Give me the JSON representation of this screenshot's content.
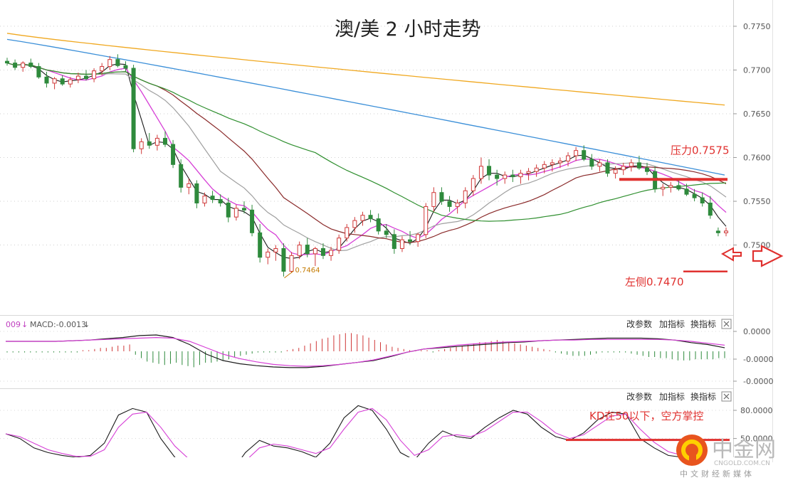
{
  "chart_data": [
    {
      "type": "candlestick",
      "title": "澳/美 2 小时走势",
      "y_ticks": [
        "0.7750",
        "0.7700",
        "0.7650",
        "0.7600",
        "0.7550",
        "0.7500"
      ],
      "ylim": [
        0.742,
        0.778
      ],
      "grid": true,
      "low_label": "0.7464",
      "low_value": 0.7464,
      "candles": [
        [
          0.771,
          0.7714,
          0.7705,
          0.7708
        ],
        [
          0.7708,
          0.7712,
          0.77,
          0.7703
        ],
        [
          0.7703,
          0.771,
          0.7698,
          0.7708
        ],
        [
          0.7708,
          0.7713,
          0.7702,
          0.7704
        ],
        [
          0.7704,
          0.7708,
          0.769,
          0.7692
        ],
        [
          0.7692,
          0.7698,
          0.768,
          0.7685
        ],
        [
          0.7685,
          0.7692,
          0.7678,
          0.769
        ],
        [
          0.769,
          0.7694,
          0.7682,
          0.7684
        ],
        [
          0.7684,
          0.7692,
          0.768,
          0.7689
        ],
        [
          0.7689,
          0.7697,
          0.7685,
          0.7693
        ],
        [
          0.7693,
          0.77,
          0.7688,
          0.769
        ],
        [
          0.769,
          0.7702,
          0.7686,
          0.7699
        ],
        [
          0.7699,
          0.7708,
          0.7694,
          0.7704
        ],
        [
          0.7704,
          0.7716,
          0.77,
          0.7712
        ],
        [
          0.7712,
          0.7718,
          0.7703,
          0.7705
        ],
        [
          0.7705,
          0.771,
          0.7698,
          0.7702
        ],
        [
          0.7702,
          0.7706,
          0.7606,
          0.761
        ],
        [
          0.761,
          0.7622,
          0.7604,
          0.7618
        ],
        [
          0.7618,
          0.7628,
          0.761,
          0.7614
        ],
        [
          0.7614,
          0.7626,
          0.7608,
          0.7622
        ],
        [
          0.7622,
          0.763,
          0.7612,
          0.7615
        ],
        [
          0.7615,
          0.762,
          0.7588,
          0.7592
        ],
        [
          0.7592,
          0.7598,
          0.756,
          0.7566
        ],
        [
          0.7566,
          0.7576,
          0.7558,
          0.757
        ],
        [
          0.757,
          0.7574,
          0.7542,
          0.7548
        ],
        [
          0.7548,
          0.756,
          0.7544,
          0.7556
        ],
        [
          0.7556,
          0.7562,
          0.7548,
          0.7552
        ],
        [
          0.7552,
          0.7558,
          0.7544,
          0.7548
        ],
        [
          0.7548,
          0.7554,
          0.7526,
          0.7532
        ],
        [
          0.7532,
          0.7546,
          0.7528,
          0.7542
        ],
        [
          0.7542,
          0.755,
          0.7536,
          0.754
        ],
        [
          0.754,
          0.7546,
          0.751,
          0.7514
        ],
        [
          0.7514,
          0.7524,
          0.748,
          0.7486
        ],
        [
          0.7486,
          0.7496,
          0.7478,
          0.7492
        ],
        [
          0.7492,
          0.75,
          0.7482,
          0.7496
        ],
        [
          0.7496,
          0.7502,
          0.7464,
          0.747
        ],
        [
          0.747,
          0.7492,
          0.7468,
          0.7488
        ],
        [
          0.7488,
          0.7504,
          0.7484,
          0.75
        ],
        [
          0.75,
          0.7508,
          0.7486,
          0.749
        ],
        [
          0.749,
          0.7498,
          0.7476,
          0.7496
        ],
        [
          0.7496,
          0.7502,
          0.7484,
          0.7488
        ],
        [
          0.7488,
          0.7498,
          0.7482,
          0.7494
        ],
        [
          0.7494,
          0.7512,
          0.749,
          0.7508
        ],
        [
          0.7508,
          0.7524,
          0.7504,
          0.752
        ],
        [
          0.752,
          0.7532,
          0.7514,
          0.7528
        ],
        [
          0.7528,
          0.7538,
          0.7522,
          0.7534
        ],
        [
          0.7534,
          0.754,
          0.7526,
          0.753
        ],
        [
          0.753,
          0.7536,
          0.7512,
          0.7516
        ],
        [
          0.7516,
          0.7524,
          0.7508,
          0.7512
        ],
        [
          0.7512,
          0.7518,
          0.749,
          0.7496
        ],
        [
          0.7496,
          0.751,
          0.7492,
          0.7506
        ],
        [
          0.7506,
          0.7516,
          0.75,
          0.7504
        ],
        [
          0.7504,
          0.7514,
          0.7498,
          0.7512
        ],
        [
          0.7512,
          0.7548,
          0.7508,
          0.7544
        ],
        [
          0.7544,
          0.7566,
          0.7538,
          0.756
        ],
        [
          0.756,
          0.7566,
          0.7546,
          0.755
        ],
        [
          0.755,
          0.7556,
          0.7538,
          0.7544
        ],
        [
          0.7544,
          0.7552,
          0.7536,
          0.7548
        ],
        [
          0.7548,
          0.7566,
          0.7542,
          0.7562
        ],
        [
          0.7562,
          0.758,
          0.7556,
          0.7576
        ],
        [
          0.7576,
          0.76,
          0.757,
          0.759
        ],
        [
          0.759,
          0.7598,
          0.7574,
          0.758
        ],
        [
          0.758,
          0.7586,
          0.7568,
          0.7576
        ],
        [
          0.7576,
          0.7584,
          0.757,
          0.758
        ],
        [
          0.758,
          0.7586,
          0.7572,
          0.7578
        ],
        [
          0.7578,
          0.7586,
          0.757,
          0.7582
        ],
        [
          0.7582,
          0.7588,
          0.7574,
          0.7584
        ],
        [
          0.7584,
          0.7592,
          0.7578,
          0.7588
        ],
        [
          0.7588,
          0.7596,
          0.7582,
          0.7592
        ],
        [
          0.7592,
          0.7598,
          0.7584,
          0.7594
        ],
        [
          0.7594,
          0.76,
          0.7588,
          0.7596
        ],
        [
          0.7596,
          0.7606,
          0.759,
          0.7602
        ],
        [
          0.7602,
          0.7612,
          0.7596,
          0.7608
        ],
        [
          0.7608,
          0.7614,
          0.7596,
          0.7598
        ],
        [
          0.7598,
          0.7604,
          0.7586,
          0.759
        ],
        [
          0.759,
          0.7598,
          0.7584,
          0.7594
        ],
        [
          0.7594,
          0.7598,
          0.7578,
          0.7582
        ],
        [
          0.7582,
          0.759,
          0.7576,
          0.7586
        ],
        [
          0.7586,
          0.7594,
          0.758,
          0.759
        ],
        [
          0.759,
          0.7598,
          0.7584,
          0.7594
        ],
        [
          0.7594,
          0.7602,
          0.7586,
          0.7588
        ],
        [
          0.7588,
          0.7594,
          0.758,
          0.7584
        ],
        [
          0.7584,
          0.759,
          0.756,
          0.7564
        ],
        [
          0.7564,
          0.757,
          0.7556,
          0.7566
        ],
        [
          0.7566,
          0.7572,
          0.756,
          0.7568
        ],
        [
          0.7568,
          0.7574,
          0.7562,
          0.7564
        ],
        [
          0.7564,
          0.757,
          0.7556,
          0.7558
        ],
        [
          0.7558,
          0.7564,
          0.755,
          0.7554
        ],
        [
          0.7554,
          0.756,
          0.7544,
          0.7548
        ],
        [
          0.7548,
          0.7556,
          0.753,
          0.7534
        ],
        [
          0.7516,
          0.752,
          0.751,
          0.7514
        ],
        [
          0.7514,
          0.752,
          0.751,
          0.7516
        ]
      ],
      "annotations": [
        {
          "text": "压力0.7575",
          "value": 0.7575,
          "color": "#e0312f"
        },
        {
          "text": "左侧0.7470",
          "value": 0.747,
          "color": "#e0312f"
        }
      ]
    },
    {
      "type": "histogram",
      "indicator_label": "MACD:-0.0013",
      "partial_label": "009",
      "y_ticks": [
        "0.0000",
        "-0.0000",
        "-0.0000"
      ],
      "controls": [
        "改参数",
        "加指标",
        "换指标"
      ],
      "histogram": [
        -1,
        -1,
        -1,
        -1,
        -1,
        -1,
        -1,
        -1,
        -1,
        -1,
        -1,
        -1,
        -1,
        1,
        1,
        2,
        3,
        3,
        4,
        5,
        5,
        6,
        -3,
        -6,
        -9,
        -10,
        -11,
        -12,
        -11,
        -10,
        -12,
        -13,
        -14,
        -12,
        -10,
        -10,
        -9,
        -8,
        -7,
        -5,
        -4,
        -3,
        -2,
        -1,
        -1,
        -1,
        -1,
        -1,
        1,
        2,
        3,
        5,
        7,
        9,
        11,
        12,
        14,
        15,
        16,
        16,
        15,
        14,
        12,
        10,
        8,
        6,
        4,
        3,
        2,
        1,
        1,
        1,
        1,
        -1,
        1,
        2,
        3,
        4,
        5,
        6,
        7,
        8,
        8,
        9,
        10,
        9,
        8,
        7,
        6,
        5,
        4,
        3,
        2,
        1,
        -1,
        -2,
        -3,
        -4,
        -4,
        -4,
        -3,
        -2,
        -1,
        -1,
        -1,
        -1,
        -1,
        -2,
        -3,
        -4,
        -5,
        -5,
        -6,
        -6,
        -7,
        -8,
        -8,
        -8,
        -7,
        -7,
        -7,
        -7,
        -6,
        -6
      ],
      "dif": [
        0,
        0,
        0,
        0,
        1,
        2,
        4,
        6,
        9,
        10,
        6,
        -5,
        -20,
        -30,
        -35,
        -38,
        -40,
        -41,
        -41,
        -39,
        -36,
        -33,
        -30,
        -24,
        -17,
        -12,
        -10,
        -8,
        -6,
        -4,
        -2,
        -1,
        1,
        2,
        3,
        4,
        5,
        5,
        5,
        4,
        2,
        -2,
        -5,
        -10
      ],
      "dea": [
        0,
        0,
        0,
        0,
        1,
        2,
        3,
        4,
        5,
        6,
        5,
        0,
        -10,
        -20,
        -27,
        -32,
        -36,
        -38,
        -39,
        -38,
        -36,
        -33,
        -29,
        -23,
        -17,
        -12,
        -9,
        -6,
        -4,
        -2,
        -1,
        0,
        1,
        2,
        2,
        3,
        3,
        3,
        3,
        3,
        2,
        0,
        -3,
        -6
      ]
    },
    {
      "type": "line",
      "y_ticks": [
        "80.0000",
        "50.0000"
      ],
      "controls": [
        "改参数",
        "加指标",
        "换指标"
      ],
      "k": [
        55,
        50,
        40,
        35,
        32,
        30,
        32,
        45,
        75,
        82,
        78,
        50,
        30,
        22,
        15,
        8,
        14,
        35,
        48,
        42,
        40,
        36,
        30,
        45,
        72,
        85,
        80,
        60,
        35,
        27,
        45,
        58,
        52,
        50,
        62,
        72,
        80,
        76,
        62,
        52,
        48,
        56,
        70,
        78,
        76,
        50,
        40,
        32,
        30,
        26,
        22,
        16
      ],
      "d": [
        55,
        52,
        45,
        38,
        34,
        31,
        31,
        38,
        62,
        76,
        78,
        62,
        42,
        28,
        20,
        12,
        12,
        26,
        40,
        44,
        42,
        38,
        34,
        40,
        60,
        78,
        82,
        70,
        48,
        32,
        38,
        52,
        54,
        52,
        58,
        68,
        78,
        78,
        68,
        56,
        50,
        54,
        64,
        74,
        76,
        60,
        46,
        36,
        32,
        28,
        24,
        20
      ],
      "annotation": {
        "text": "KD在50以下，空方掌控",
        "value": 50,
        "color": "#e0312f"
      }
    }
  ],
  "watermark": {
    "brand": "中金网",
    "domain": "CNGOLD.COM.CN",
    "tagline": "中文财经新媒体"
  },
  "colors": {
    "up": "#d03838",
    "down": "#2e8a3c",
    "ma_black": "#1a1a1a",
    "ma_magenta": "#d63fd6",
    "ma_gray": "#a0a0a0",
    "ma_brown": "#8a2a2a",
    "ma_green": "#2f8f2f",
    "ma_blue": "#3b8fd8",
    "ma_orange": "#f0a820",
    "arrow_red": "#e0312f"
  }
}
